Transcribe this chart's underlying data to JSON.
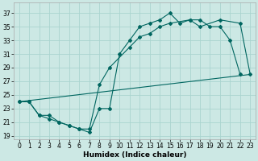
{
  "xlabel": "Humidex (Indice chaleur)",
  "background_color": "#cce8e4",
  "grid_color": "#aad4cf",
  "line_color": "#006660",
  "xlim": [
    -0.5,
    23.5
  ],
  "ylim": [
    18.5,
    38.5
  ],
  "xticks": [
    0,
    1,
    2,
    3,
    4,
    5,
    6,
    7,
    8,
    9,
    10,
    11,
    12,
    13,
    14,
    15,
    16,
    17,
    18,
    19,
    20,
    21,
    22,
    23
  ],
  "yticks": [
    19,
    21,
    23,
    25,
    27,
    29,
    31,
    33,
    35,
    37
  ],
  "line1_x": [
    0,
    1,
    2,
    3,
    4,
    5,
    6,
    7,
    8,
    9,
    10,
    11,
    12,
    13,
    14,
    15,
    16,
    17,
    18,
    19,
    20,
    21,
    22
  ],
  "line1_y": [
    24,
    24,
    22,
    21.5,
    21,
    20.5,
    20,
    19.5,
    23,
    23,
    31,
    33,
    35,
    35.5,
    36,
    37,
    35.5,
    36,
    36,
    35,
    35,
    33,
    28
  ],
  "line2_x": [
    0,
    1,
    2,
    3,
    4,
    5,
    6,
    7,
    8,
    9,
    11,
    12,
    13,
    14,
    15,
    17,
    18,
    20,
    22,
    23
  ],
  "line2_y": [
    24,
    24,
    22,
    22,
    21,
    20.5,
    20,
    20,
    26.5,
    29,
    32,
    33.5,
    34,
    35,
    35.5,
    36,
    35,
    36,
    35.5,
    28
  ],
  "line3_x": [
    0,
    23
  ],
  "line3_y": [
    24,
    28
  ]
}
